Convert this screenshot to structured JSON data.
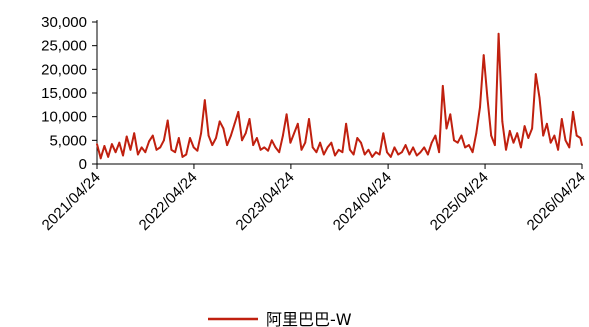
{
  "chart_data": {
    "type": "line",
    "title": "",
    "xlabel": "",
    "ylabel": "",
    "ylim": [
      0,
      30000
    ],
    "xlim": [
      "2021/04/24",
      "2026/04/24"
    ],
    "grid": false,
    "legend_position": "bottom-center",
    "y_ticks": [
      0,
      5000,
      10000,
      15000,
      20000,
      25000,
      30000
    ],
    "y_tick_labels": [
      "0",
      "5,000",
      "10,000",
      "15,000",
      "20,000",
      "25,000",
      "30,000"
    ],
    "x_ticks": [
      "2021/04/24",
      "2022/04/24",
      "2023/04/24",
      "2024/04/24",
      "2025/04/24",
      "2026/04/24"
    ],
    "x_tick_labels": [
      "2021/04/24",
      "2022/04/24",
      "2023/04/24",
      "2024/04/24",
      "2025/04/24",
      "2026/04/24"
    ],
    "series": [
      {
        "name": "阿里巴巴-W",
        "color": "#c0200f",
        "points": [
          [
            "2021/04/24",
            4200
          ],
          [
            "2021/05/08",
            1200
          ],
          [
            "2021/05/22",
            3800
          ],
          [
            "2021/06/05",
            1500
          ],
          [
            "2021/06/19",
            4200
          ],
          [
            "2021/07/03",
            2500
          ],
          [
            "2021/07/17",
            4500
          ],
          [
            "2021/07/31",
            1800
          ],
          [
            "2021/08/14",
            5800
          ],
          [
            "2021/08/28",
            3000
          ],
          [
            "2021/09/11",
            6500
          ],
          [
            "2021/09/25",
            2000
          ],
          [
            "2021/10/09",
            3500
          ],
          [
            "2021/10/23",
            2500
          ],
          [
            "2021/11/06",
            4800
          ],
          [
            "2021/11/20",
            6000
          ],
          [
            "2021/12/04",
            3000
          ],
          [
            "2021/12/18",
            3500
          ],
          [
            "2022/01/01",
            5000
          ],
          [
            "2022/01/15",
            9200
          ],
          [
            "2022/01/29",
            3000
          ],
          [
            "2022/02/12",
            2500
          ],
          [
            "2022/02/26",
            5500
          ],
          [
            "2022/03/12",
            1500
          ],
          [
            "2022/03/26",
            2000
          ],
          [
            "2022/04/09",
            5500
          ],
          [
            "2022/04/23",
            3500
          ],
          [
            "2022/05/07",
            2800
          ],
          [
            "2022/05/21",
            6500
          ],
          [
            "2022/06/04",
            13500
          ],
          [
            "2022/06/18",
            6000
          ],
          [
            "2022/07/02",
            4000
          ],
          [
            "2022/07/16",
            5500
          ],
          [
            "2022/07/30",
            9000
          ],
          [
            "2022/08/13",
            7500
          ],
          [
            "2022/08/27",
            4000
          ],
          [
            "2022/09/10",
            6000
          ],
          [
            "2022/09/24",
            8500
          ],
          [
            "2022/10/08",
            11000
          ],
          [
            "2022/10/22",
            5000
          ],
          [
            "2022/11/05",
            6500
          ],
          [
            "2022/11/19",
            9500
          ],
          [
            "2022/12/03",
            4000
          ],
          [
            "2022/12/17",
            5500
          ],
          [
            "2022/12/31",
            3000
          ],
          [
            "2023/01/14",
            3500
          ],
          [
            "2023/01/28",
            2800
          ],
          [
            "2023/02/11",
            5000
          ],
          [
            "2023/02/25",
            3500
          ],
          [
            "2023/03/11",
            2500
          ],
          [
            "2023/03/25",
            6000
          ],
          [
            "2023/04/08",
            10500
          ],
          [
            "2023/04/22",
            4500
          ],
          [
            "2023/05/06",
            6500
          ],
          [
            "2023/05/20",
            8500
          ],
          [
            "2023/06/03",
            3000
          ],
          [
            "2023/06/17",
            4500
          ],
          [
            "2023/07/01",
            9500
          ],
          [
            "2023/07/15",
            3500
          ],
          [
            "2023/07/29",
            2500
          ],
          [
            "2023/08/12",
            4500
          ],
          [
            "2023/08/26",
            2000
          ],
          [
            "2023/09/09",
            3500
          ],
          [
            "2023/09/23",
            4500
          ],
          [
            "2023/10/07",
            1800
          ],
          [
            "2023/10/21",
            3000
          ],
          [
            "2023/11/04",
            2500
          ],
          [
            "2023/11/18",
            8500
          ],
          [
            "2023/12/02",
            3000
          ],
          [
            "2023/12/16",
            2000
          ],
          [
            "2023/12/30",
            5500
          ],
          [
            "2024/01/13",
            4500
          ],
          [
            "2024/01/27",
            2000
          ],
          [
            "2024/02/10",
            3000
          ],
          [
            "2024/02/24",
            1500
          ],
          [
            "2024/03/09",
            2500
          ],
          [
            "2024/03/23",
            2000
          ],
          [
            "2024/04/06",
            6500
          ],
          [
            "2024/04/20",
            2500
          ],
          [
            "2024/05/04",
            1500
          ],
          [
            "2024/05/18",
            3500
          ],
          [
            "2024/06/01",
            2000
          ],
          [
            "2024/06/15",
            2500
          ],
          [
            "2024/06/29",
            4000
          ],
          [
            "2024/07/13",
            2000
          ],
          [
            "2024/07/27",
            3500
          ],
          [
            "2024/08/10",
            1800
          ],
          [
            "2024/08/24",
            2500
          ],
          [
            "2024/09/07",
            3500
          ],
          [
            "2024/09/21",
            2000
          ],
          [
            "2024/10/05",
            4500
          ],
          [
            "2024/10/19",
            6000
          ],
          [
            "2024/11/02",
            2500
          ],
          [
            "2024/11/16",
            16500
          ],
          [
            "2024/11/30",
            7500
          ],
          [
            "2024/12/14",
            10500
          ],
          [
            "2024/12/28",
            5000
          ],
          [
            "2025/01/11",
            4500
          ],
          [
            "2025/01/25",
            6000
          ],
          [
            "2025/02/08",
            3500
          ],
          [
            "2025/02/22",
            4000
          ],
          [
            "2025/03/08",
            2500
          ],
          [
            "2025/03/22",
            6500
          ],
          [
            "2025/04/05",
            12000
          ],
          [
            "2025/04/19",
            23000
          ],
          [
            "2025/05/03",
            14000
          ],
          [
            "2025/05/17",
            6000
          ],
          [
            "2025/05/31",
            4000
          ],
          [
            "2025/06/14",
            27500
          ],
          [
            "2025/06/28",
            9000
          ],
          [
            "2025/07/12",
            3000
          ],
          [
            "2025/07/26",
            7000
          ],
          [
            "2025/08/09",
            4500
          ],
          [
            "2025/08/23",
            6500
          ],
          [
            "2025/09/06",
            3500
          ],
          [
            "2025/09/20",
            8000
          ],
          [
            "2025/10/04",
            5500
          ],
          [
            "2025/10/18",
            7500
          ],
          [
            "2025/11/01",
            19000
          ],
          [
            "2025/11/15",
            14000
          ],
          [
            "2025/11/29",
            6000
          ],
          [
            "2025/12/13",
            8500
          ],
          [
            "2025/12/27",
            4500
          ],
          [
            "2026/01/10",
            6000
          ],
          [
            "2026/01/24",
            3000
          ],
          [
            "2026/02/07",
            9500
          ],
          [
            "2026/02/21",
            5000
          ],
          [
            "2026/03/07",
            3500
          ],
          [
            "2026/03/21",
            11000
          ],
          [
            "2026/04/04",
            6000
          ],
          [
            "2026/04/18",
            5500
          ],
          [
            "2026/04/24",
            4000
          ]
        ]
      }
    ]
  }
}
